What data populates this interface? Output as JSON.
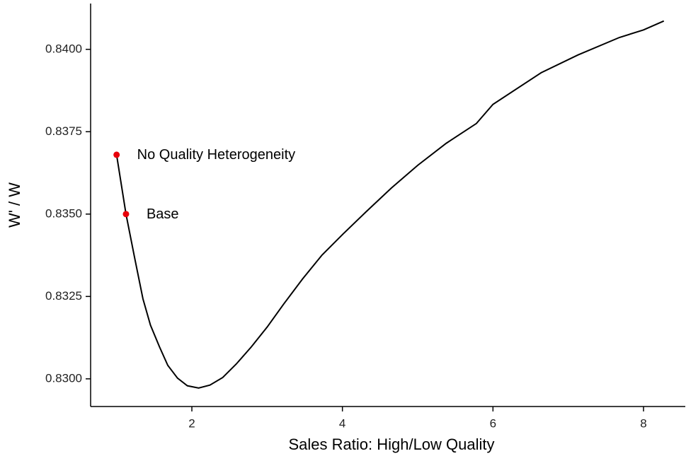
{
  "chart_data": {
    "type": "line",
    "xlabel": "Sales Ratio: High/Low Quality",
    "ylabel": "W' / W",
    "x": [
      1.0,
      1.125,
      1.24,
      1.35,
      1.45,
      1.57,
      1.68,
      1.81,
      1.94,
      2.09,
      2.24,
      2.41,
      2.59,
      2.79,
      3.0,
      3.22,
      3.47,
      3.73,
      4.01,
      4.31,
      4.65,
      5.0,
      5.38,
      5.78,
      6.0,
      6.64,
      7.13,
      7.68,
      8.0,
      8.27
    ],
    "series": [
      {
        "color": "#000000",
        "values": [
          0.8368,
          0.835,
          0.83367,
          0.83243,
          0.83163,
          0.83097,
          0.83041,
          0.83002,
          0.82979,
          0.82972,
          0.82981,
          0.83004,
          0.83045,
          0.83097,
          0.83157,
          0.83227,
          0.83303,
          0.83376,
          0.8344,
          0.83506,
          0.83579,
          0.83648,
          0.83715,
          0.83775,
          0.83833,
          0.83929,
          0.83983,
          0.84036,
          0.84059,
          0.84086
        ]
      }
    ],
    "points": [
      {
        "label": "No Quality Heterogeneity",
        "x": 1.0,
        "y": 0.8368,
        "color": "#e8000b"
      },
      {
        "label": "Base",
        "x": 1.125,
        "y": 0.835,
        "color": "#e8000b"
      }
    ],
    "xlim": [
      0.655,
      8.555
    ],
    "ylim": [
      0.82916,
      0.84139
    ],
    "xticks": [
      2,
      4,
      6,
      8
    ],
    "yticks": [
      {
        "value": 0.83,
        "label": "0.8300"
      },
      {
        "value": 0.8325,
        "label": "0.8325"
      },
      {
        "value": 0.835,
        "label": "0.8350"
      },
      {
        "value": 0.8375,
        "label": "0.8375"
      },
      {
        "value": 0.84,
        "label": "0.8400"
      }
    ]
  }
}
